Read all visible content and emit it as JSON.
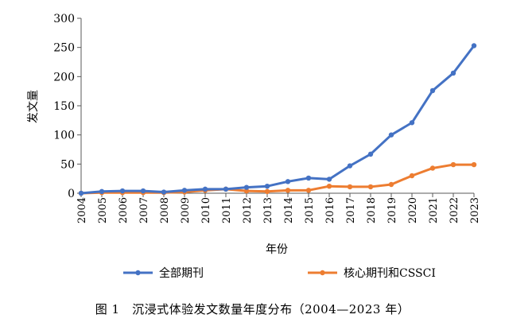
{
  "caption": "图 1　沉浸式体验发文数量年度分布（2004—2023 年）",
  "chart_data": {
    "type": "line",
    "title": "",
    "xlabel": "年份",
    "ylabel": "发文量",
    "ylim": [
      0,
      300
    ],
    "yticks": [
      0,
      50,
      100,
      150,
      200,
      250,
      300
    ],
    "x": [
      "2004",
      "2005",
      "2006",
      "2007",
      "2008",
      "2009",
      "2010",
      "2011",
      "2012",
      "2013",
      "2014",
      "2015",
      "2016",
      "2017",
      "2018",
      "2019",
      "2020",
      "2021",
      "2022",
      "2023"
    ],
    "grid": false,
    "legend_position": "bottom",
    "series": [
      {
        "name": "全部期刊",
        "color": "#4472C4",
        "values": [
          0,
          3,
          4,
          4,
          2,
          5,
          7,
          7,
          10,
          12,
          20,
          26,
          24,
          47,
          67,
          100,
          121,
          176,
          206,
          253
        ]
      },
      {
        "name": "核心期刊和CSSCI",
        "color": "#ED7D31",
        "values": [
          0,
          1,
          1,
          1,
          1,
          2,
          5,
          7,
          4,
          3,
          5,
          5,
          12,
          11,
          11,
          15,
          30,
          43,
          49,
          49
        ]
      }
    ]
  }
}
